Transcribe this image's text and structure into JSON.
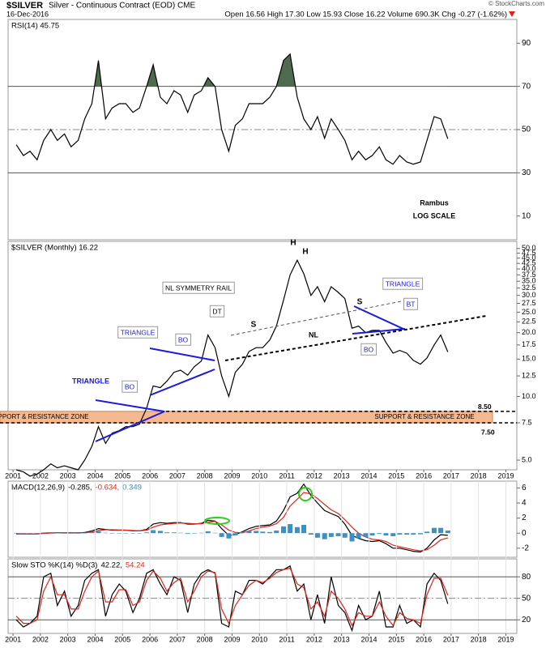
{
  "header": {
    "symbol": "$SILVER",
    "description": "Silver - Continuous Contract (EOD) CME",
    "date": "16-Dec-2016",
    "quote": "Open 16.56  High 17.30  Low 15.93  Close 16.22  Volume 690.3K  Chg -0.27 (-1.62%)",
    "credit": "© StockCharts.com"
  },
  "chart_data": [
    {
      "type": "line",
      "title": "RSI(14) 45.75",
      "x": [
        2001.12,
        2001.38,
        2001.62,
        2001.88,
        2002.12,
        2002.38,
        2002.62,
        2002.88,
        2003.12,
        2003.38,
        2003.62,
        2003.88,
        2004.12,
        2004.38,
        2004.62,
        2004.88,
        2005.12,
        2005.38,
        2005.62,
        2005.88,
        2006.12,
        2006.38,
        2006.62,
        2006.88,
        2007.12,
        2007.38,
        2007.62,
        2007.88,
        2008.12,
        2008.38,
        2008.62,
        2008.88,
        2009.12,
        2009.38,
        2009.62,
        2009.88,
        2010.12,
        2010.38,
        2010.62,
        2010.88,
        2011.12,
        2011.38,
        2011.62,
        2011.88,
        2012.12,
        2012.38,
        2012.62,
        2012.88,
        2013.12,
        2013.38,
        2013.62,
        2013.88,
        2014.12,
        2014.38,
        2014.62,
        2014.88,
        2015.12,
        2015.38,
        2015.62,
        2015.88,
        2016.12,
        2016.38,
        2016.62,
        2016.88
      ],
      "series": [
        {
          "color": "#000000",
          "style": "line",
          "values": [
            43,
            38,
            40,
            36,
            45,
            50,
            45,
            48,
            42,
            45,
            55,
            62,
            82,
            55,
            60,
            62,
            62,
            58,
            60,
            70,
            80,
            65,
            62,
            68,
            66,
            58,
            66,
            68,
            74,
            70,
            50,
            40,
            52,
            55,
            62,
            62,
            62,
            65,
            70,
            82,
            85,
            65,
            55,
            50,
            56,
            46,
            55,
            50,
            45,
            36,
            40,
            36,
            38,
            42,
            36,
            34,
            38,
            35,
            34,
            35,
            45,
            56,
            55,
            45.75
          ]
        }
      ],
      "xlim": [
        2000.82,
        2019.4
      ],
      "ylim": [
        -1,
        101
      ],
      "yticks": [
        10,
        30,
        50,
        70,
        90
      ],
      "levels": [
        {
          "value": 70,
          "style": "solid",
          "fill_above": "#4f6b4f"
        },
        {
          "value": 50,
          "style": "dashdot"
        },
        {
          "value": 30,
          "style": "solid"
        }
      ],
      "annotations": [
        "Rambus",
        "LOG SCALE"
      ]
    },
    {
      "type": "line",
      "title": "$SILVER (Monthly) 16.22",
      "x": [
        2001.12,
        2001.38,
        2001.62,
        2001.88,
        2002.12,
        2002.38,
        2002.62,
        2002.88,
        2003.12,
        2003.38,
        2003.62,
        2003.88,
        2004.12,
        2004.38,
        2004.62,
        2004.88,
        2005.12,
        2005.38,
        2005.62,
        2005.88,
        2006.12,
        2006.38,
        2006.62,
        2006.88,
        2007.12,
        2007.38,
        2007.62,
        2007.88,
        2008.12,
        2008.38,
        2008.62,
        2008.88,
        2009.12,
        2009.38,
        2009.62,
        2009.88,
        2010.12,
        2010.38,
        2010.62,
        2010.88,
        2011.12,
        2011.38,
        2011.62,
        2011.88,
        2012.12,
        2012.38,
        2012.62,
        2012.88,
        2013.12,
        2013.38,
        2013.62,
        2013.88,
        2014.12,
        2014.38,
        2014.62,
        2014.88,
        2015.12,
        2015.38,
        2015.62,
        2015.88,
        2016.12,
        2016.38,
        2016.62,
        2016.88
      ],
      "series": [
        {
          "color": "#000000",
          "style": "line",
          "values": [
            4.5,
            4.4,
            4.2,
            4.3,
            4.5,
            4.8,
            4.6,
            4.7,
            4.6,
            4.5,
            5.0,
            5.8,
            7.2,
            6.0,
            6.7,
            6.9,
            7.2,
            7.2,
            7.4,
            8.8,
            11.2,
            11.0,
            11.8,
            13.0,
            13.3,
            12.6,
            13.8,
            14.7,
            19.5,
            17.0,
            12.5,
            10.0,
            13.0,
            14.2,
            16.3,
            17.0,
            17.0,
            18.5,
            21.5,
            28.5,
            37.5,
            44.0,
            38.0,
            30.0,
            33.0,
            28.0,
            33.0,
            31.0,
            29.0,
            21.0,
            21.5,
            20.0,
            20.5,
            20.5,
            18.0,
            16.0,
            16.5,
            16.0,
            14.8,
            14.2,
            15.2,
            17.5,
            19.5,
            16.22
          ]
        }
      ],
      "log_scale": true,
      "xlim": [
        2000.82,
        2019.4
      ],
      "ylim": [
        4.5,
        54
      ],
      "yticks": [
        {
          "value": 50,
          "label": "50.0"
        },
        47.5,
        {
          "value": 45,
          "label": "45.0"
        },
        42.5,
        {
          "value": 40,
          "label": "40.0"
        },
        37.5,
        {
          "value": 35,
          "label": "35.0"
        },
        32.5,
        {
          "value": 30,
          "label": "30.0"
        },
        27.5,
        {
          "value": 25,
          "label": "25.0"
        },
        22.5,
        {
          "value": 20,
          "label": "20.0"
        },
        17.5,
        {
          "value": 15,
          "label": "15.0"
        },
        12.5,
        {
          "value": 10,
          "label": "10.0"
        },
        7.5,
        {
          "value": 5,
          "label": "5.0"
        }
      ],
      "xticks": [
        2001,
        2002,
        2003,
        2004,
        2005,
        2006,
        2007,
        2008,
        2009,
        2010,
        2011,
        2012,
        2013,
        2014,
        2015,
        2016,
        2017,
        2018,
        2019
      ],
      "zone": {
        "labels": [
          "SUPPORT & RESISTANCE ZONE",
          "SUPPORT & RESISTANCE ZONE"
        ],
        "upper": {
          "value": 8.5,
          "label": "8.50"
        },
        "lower": {
          "value": 7.5,
          "label": "7.50"
        },
        "color": "#f6b98f"
      },
      "annotations": [
        "TRIANGLE",
        "BO",
        "TRIANGLE",
        "BO",
        "DT",
        "NL SYMMETRY RAIL",
        "S",
        "H",
        "H",
        "S",
        "NL",
        "TRIANGLE",
        "BT",
        "BO"
      ]
    },
    {
      "type": "macd",
      "title": "MACD(12,26,9)",
      "x": [
        2001.12,
        2001.38,
        2001.62,
        2001.88,
        2002.12,
        2002.38,
        2002.62,
        2002.88,
        2003.12,
        2003.38,
        2003.62,
        2003.88,
        2004.12,
        2004.38,
        2004.62,
        2004.88,
        2005.12,
        2005.38,
        2005.62,
        2005.88,
        2006.12,
        2006.38,
        2006.62,
        2006.88,
        2007.12,
        2007.38,
        2007.62,
        2007.88,
        2008.12,
        2008.38,
        2008.62,
        2008.88,
        2009.12,
        2009.38,
        2009.62,
        2009.88,
        2010.12,
        2010.38,
        2010.62,
        2010.88,
        2011.12,
        2011.38,
        2011.62,
        2011.88,
        2012.12,
        2012.38,
        2012.62,
        2012.88,
        2013.12,
        2013.38,
        2013.62,
        2013.88,
        2014.12,
        2014.38,
        2014.62,
        2014.88,
        2015.12,
        2015.38,
        2015.62,
        2015.88,
        2016.12,
        2016.38,
        2016.62,
        2016.88
      ],
      "series": [
        {
          "legend": "-0.285,",
          "color": "#000000",
          "style": "line",
          "values": [
            -0.1,
            -0.1,
            -0.1,
            -0.1,
            0,
            0.05,
            0.05,
            0.05,
            0.05,
            0.05,
            0.1,
            0.3,
            0.6,
            0.5,
            0.4,
            0.4,
            0.4,
            0.3,
            0.3,
            0.5,
            1.2,
            1.4,
            1.3,
            1.4,
            1.4,
            1.2,
            1.2,
            1.3,
            1.7,
            1.6,
            0.6,
            -0.3,
            -0.2,
            0.2,
            0.6,
            0.9,
            1.0,
            1.1,
            1.6,
            3.0,
            4.8,
            5.3,
            6.5,
            5.0,
            4.0,
            3.0,
            2.6,
            2.2,
            1.2,
            -0.3,
            -0.7,
            -1.0,
            -1.1,
            -1.0,
            -1.4,
            -2.0,
            -2.0,
            -2.2,
            -2.4,
            -2.5,
            -2.0,
            -0.9,
            -0.2,
            -0.285
          ]
        },
        {
          "legend": "-0.634,",
          "color": "#e0241b",
          "style": "line",
          "values": [
            -0.05,
            -0.1,
            -0.1,
            -0.1,
            -0.05,
            0,
            0.03,
            0.05,
            0.05,
            0.05,
            0.07,
            0.15,
            0.35,
            0.45,
            0.45,
            0.42,
            0.4,
            0.35,
            0.3,
            0.4,
            0.8,
            1.1,
            1.2,
            1.3,
            1.35,
            1.3,
            1.25,
            1.25,
            1.45,
            1.55,
            1.1,
            0.4,
            0.1,
            0.05,
            0.3,
            0.6,
            0.8,
            0.95,
            1.25,
            2.1,
            3.6,
            4.5,
            5.4,
            5.2,
            4.6,
            3.8,
            3.1,
            2.6,
            1.8,
            0.8,
            0,
            -0.5,
            -0.8,
            -0.9,
            -1.1,
            -1.6,
            -1.8,
            -2.0,
            -2.2,
            -2.35,
            -2.2,
            -1.6,
            -0.9,
            -0.634
          ]
        },
        {
          "legend": "0.349",
          "color": "#3d8fc4",
          "style": "histogram",
          "values": [
            -0.05,
            0,
            0,
            0,
            0.05,
            0.05,
            0.02,
            0,
            0,
            0,
            0.03,
            0.15,
            0.25,
            0.05,
            -0.05,
            -0.02,
            0,
            -0.05,
            0,
            0.1,
            0.4,
            0.3,
            0.1,
            0.1,
            0.05,
            -0.1,
            -0.05,
            0.05,
            0.25,
            0.05,
            -0.5,
            -0.7,
            -0.3,
            0.15,
            0.3,
            0.3,
            0.2,
            0.15,
            0.35,
            0.9,
            1.2,
            0.8,
            1.1,
            -0.2,
            -0.6,
            -0.8,
            -0.5,
            -0.4,
            -0.6,
            -1.1,
            -0.7,
            -0.5,
            -0.3,
            -0.1,
            -0.3,
            -0.4,
            -0.2,
            -0.2,
            -0.2,
            -0.15,
            0.2,
            0.7,
            0.7,
            0.349
          ]
        }
      ],
      "xlim": [
        2000.82,
        2019.4
      ],
      "ylim": [
        -3.2,
        6.9
      ],
      "yticks": [
        -2,
        0,
        2,
        4,
        6
      ]
    },
    {
      "type": "line",
      "title": "Slow STO %K(14) %D(3)",
      "x": [
        2001.12,
        2001.38,
        2001.62,
        2001.88,
        2002.12,
        2002.38,
        2002.62,
        2002.88,
        2003.12,
        2003.38,
        2003.62,
        2003.88,
        2004.12,
        2004.38,
        2004.62,
        2004.88,
        2005.12,
        2005.38,
        2005.62,
        2005.88,
        2006.12,
        2006.38,
        2006.62,
        2006.88,
        2007.12,
        2007.38,
        2007.62,
        2007.88,
        2008.12,
        2008.38,
        2008.62,
        2008.88,
        2009.12,
        2009.38,
        2009.62,
        2009.88,
        2010.12,
        2010.38,
        2010.62,
        2010.88,
        2011.12,
        2011.38,
        2011.62,
        2011.88,
        2012.12,
        2012.38,
        2012.62,
        2012.88,
        2013.12,
        2013.38,
        2013.62,
        2013.88,
        2014.12,
        2014.38,
        2014.62,
        2014.88,
        2015.12,
        2015.38,
        2015.62,
        2015.88,
        2016.12,
        2016.38,
        2016.62,
        2016.88
      ],
      "series": [
        {
          "legend": "42.22,",
          "color": "#000000",
          "style": "line",
          "values": [
            20,
            10,
            15,
            25,
            80,
            85,
            40,
            60,
            25,
            40,
            75,
            85,
            90,
            25,
            55,
            70,
            60,
            30,
            50,
            85,
            90,
            70,
            55,
            80,
            75,
            30,
            70,
            85,
            90,
            85,
            15,
            10,
            60,
            55,
            75,
            75,
            70,
            80,
            90,
            90,
            95,
            60,
            70,
            20,
            55,
            15,
            80,
            40,
            30,
            5,
            40,
            20,
            25,
            60,
            10,
            10,
            40,
            15,
            20,
            10,
            70,
            85,
            75,
            42.22
          ]
        },
        {
          "legend": "54.24",
          "color": "#e0241b",
          "style": "line",
          "values": [
            25,
            15,
            15,
            20,
            60,
            80,
            55,
            55,
            35,
            35,
            60,
            80,
            88,
            45,
            45,
            62,
            62,
            40,
            45,
            75,
            88,
            78,
            60,
            72,
            78,
            45,
            60,
            80,
            88,
            86,
            35,
            15,
            40,
            55,
            68,
            75,
            72,
            78,
            86,
            90,
            92,
            70,
            65,
            35,
            45,
            25,
            60,
            50,
            35,
            12,
            30,
            25,
            25,
            45,
            25,
            12,
            30,
            22,
            20,
            15,
            55,
            78,
            78,
            54.24
          ]
        }
      ],
      "xlim": [
        2000.82,
        2019.4
      ],
      "ylim": [
        1,
        105
      ],
      "yticks": [
        20,
        50,
        80
      ],
      "xticks": [
        2001,
        2002,
        2003,
        2004,
        2005,
        2006,
        2007,
        2008,
        2009,
        2010,
        2011,
        2012,
        2013,
        2014,
        2015,
        2016,
        2017,
        2018,
        2019
      ],
      "levels": [
        {
          "value": 80,
          "style": "solid"
        },
        {
          "value": 50,
          "style": "dashdot"
        },
        {
          "value": 20,
          "style": "solid"
        }
      ]
    }
  ]
}
